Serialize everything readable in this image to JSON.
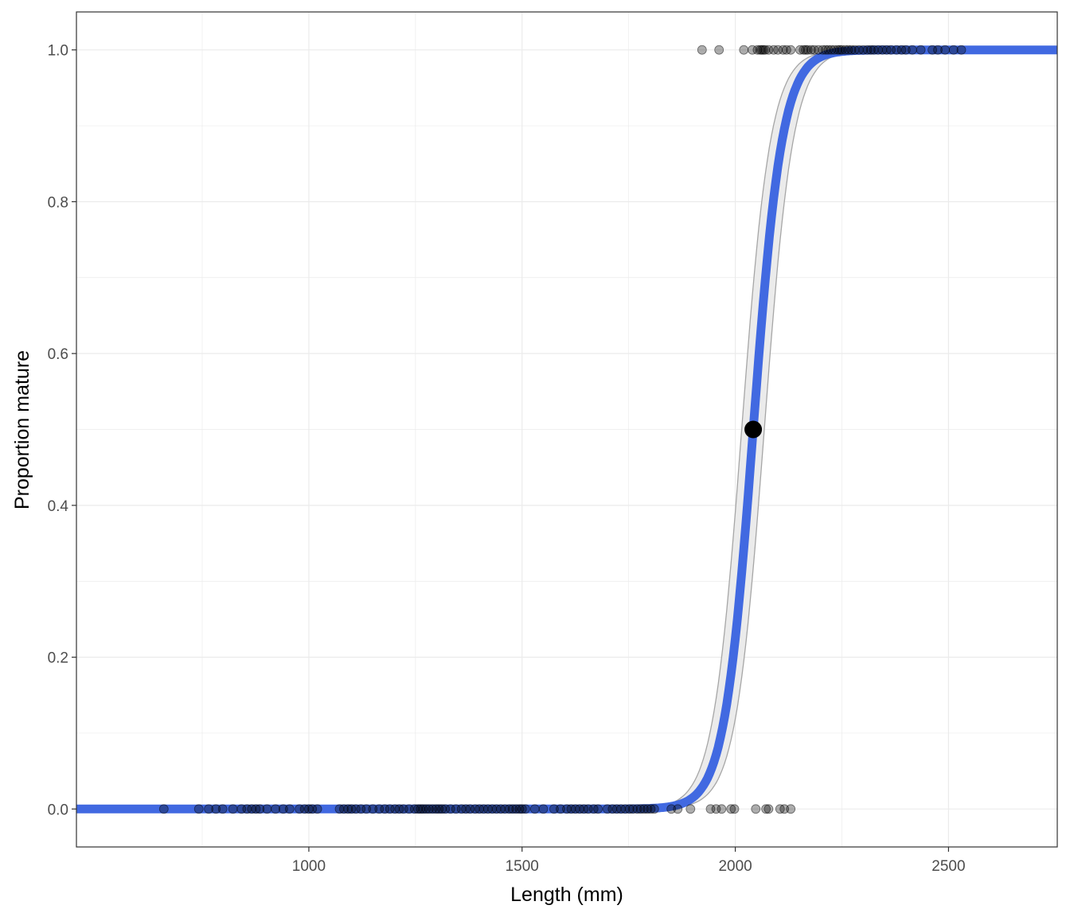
{
  "chart_data": {
    "type": "scatter",
    "xlabel": "Length (mm)",
    "ylabel": "Proportion mature",
    "xlim": [
      455,
      2755
    ],
    "ylim": [
      -0.05,
      1.05
    ],
    "x_ticks": [
      1000,
      1500,
      2000,
      2500
    ],
    "x_tick_labels": [
      "1000",
      "1500",
      "2000",
      "2500"
    ],
    "y_ticks": [
      0,
      0.2,
      0.4,
      0.6,
      0.8,
      1.0
    ],
    "y_tick_labels": [
      "0.0",
      "0.2",
      "0.4",
      "0.6",
      "0.8",
      "1.0"
    ],
    "grid": true,
    "theme": "bw",
    "colors": {
      "curve": "#4169E1",
      "ribbon_fill": "#EBEBEB",
      "ribbon_line": "#A6A6A6",
      "points": "#000000",
      "grid": "#EBEBEB",
      "panel_border": "#333333"
    },
    "fitted_curve": {
      "model": "logistic",
      "x_range": [
        455,
        2755
      ],
      "l50": 2042,
      "slope": 0.0295,
      "ci_l50": [
        2015,
        2068
      ]
    },
    "l50_point": {
      "x": 2042,
      "y": 0.5
    },
    "series": [
      {
        "values": [
          {
            "x": 1922,
            "y": 1
          },
          {
            "x": 1962,
            "y": 1
          },
          {
            "x": 2020,
            "y": 1
          },
          {
            "x": 2040,
            "y": 1
          },
          {
            "x": 2052,
            "y": 1
          },
          {
            "x": 2058,
            "y": 1
          },
          {
            "x": 2062,
            "y": 1
          },
          {
            "x": 2066,
            "y": 1
          },
          {
            "x": 2070,
            "y": 1
          },
          {
            "x": 2078,
            "y": 1
          },
          {
            "x": 2090,
            "y": 1
          },
          {
            "x": 2100,
            "y": 1
          },
          {
            "x": 2112,
            "y": 1
          },
          {
            "x": 2120,
            "y": 1
          },
          {
            "x": 2130,
            "y": 1
          },
          {
            "x": 2152,
            "y": 1
          },
          {
            "x": 2160,
            "y": 1
          },
          {
            "x": 2165,
            "y": 1
          },
          {
            "x": 2170,
            "y": 1
          },
          {
            "x": 2178,
            "y": 1
          },
          {
            "x": 2185,
            "y": 1
          },
          {
            "x": 2195,
            "y": 1
          },
          {
            "x": 2205,
            "y": 1
          },
          {
            "x": 2212,
            "y": 1
          },
          {
            "x": 2218,
            "y": 1
          },
          {
            "x": 2225,
            "y": 1
          },
          {
            "x": 2232,
            "y": 1
          },
          {
            "x": 2240,
            "y": 1
          },
          {
            "x": 2245,
            "y": 1
          },
          {
            "x": 2250,
            "y": 1
          },
          {
            "x": 2258,
            "y": 1
          },
          {
            "x": 2265,
            "y": 1
          },
          {
            "x": 2272,
            "y": 1
          },
          {
            "x": 2280,
            "y": 1
          },
          {
            "x": 2290,
            "y": 1
          },
          {
            "x": 2300,
            "y": 1
          },
          {
            "x": 2310,
            "y": 1
          },
          {
            "x": 2318,
            "y": 1
          },
          {
            "x": 2325,
            "y": 1
          },
          {
            "x": 2335,
            "y": 1
          },
          {
            "x": 2345,
            "y": 1
          },
          {
            "x": 2355,
            "y": 1
          },
          {
            "x": 2365,
            "y": 1
          },
          {
            "x": 2378,
            "y": 1
          },
          {
            "x": 2390,
            "y": 1
          },
          {
            "x": 2400,
            "y": 1
          },
          {
            "x": 2415,
            "y": 1
          },
          {
            "x": 2435,
            "y": 1
          },
          {
            "x": 2462,
            "y": 1
          },
          {
            "x": 2475,
            "y": 1
          },
          {
            "x": 2492,
            "y": 1
          },
          {
            "x": 2512,
            "y": 1
          },
          {
            "x": 2530,
            "y": 1
          },
          {
            "x": 660,
            "y": 0
          },
          {
            "x": 742,
            "y": 0
          },
          {
            "x": 765,
            "y": 0
          },
          {
            "x": 782,
            "y": 0
          },
          {
            "x": 798,
            "y": 0
          },
          {
            "x": 822,
            "y": 0
          },
          {
            "x": 842,
            "y": 0
          },
          {
            "x": 855,
            "y": 0
          },
          {
            "x": 866,
            "y": 0
          },
          {
            "x": 876,
            "y": 0
          },
          {
            "x": 885,
            "y": 0
          },
          {
            "x": 902,
            "y": 0
          },
          {
            "x": 922,
            "y": 0
          },
          {
            "x": 940,
            "y": 0
          },
          {
            "x": 955,
            "y": 0
          },
          {
            "x": 978,
            "y": 0
          },
          {
            "x": 990,
            "y": 0
          },
          {
            "x": 1000,
            "y": 0
          },
          {
            "x": 1008,
            "y": 0
          },
          {
            "x": 1020,
            "y": 0
          },
          {
            "x": 1072,
            "y": 0
          },
          {
            "x": 1082,
            "y": 0
          },
          {
            "x": 1092,
            "y": 0
          },
          {
            "x": 1100,
            "y": 0
          },
          {
            "x": 1110,
            "y": 0
          },
          {
            "x": 1122,
            "y": 0
          },
          {
            "x": 1135,
            "y": 0
          },
          {
            "x": 1150,
            "y": 0
          },
          {
            "x": 1165,
            "y": 0
          },
          {
            "x": 1178,
            "y": 0
          },
          {
            "x": 1190,
            "y": 0
          },
          {
            "x": 1202,
            "y": 0
          },
          {
            "x": 1212,
            "y": 0
          },
          {
            "x": 1222,
            "y": 0
          },
          {
            "x": 1235,
            "y": 0
          },
          {
            "x": 1248,
            "y": 0
          },
          {
            "x": 1256,
            "y": 0
          },
          {
            "x": 1262,
            "y": 0
          },
          {
            "x": 1268,
            "y": 0
          },
          {
            "x": 1275,
            "y": 0
          },
          {
            "x": 1282,
            "y": 0
          },
          {
            "x": 1290,
            "y": 0
          },
          {
            "x": 1298,
            "y": 0
          },
          {
            "x": 1305,
            "y": 0
          },
          {
            "x": 1312,
            "y": 0
          },
          {
            "x": 1320,
            "y": 0
          },
          {
            "x": 1332,
            "y": 0
          },
          {
            "x": 1345,
            "y": 0
          },
          {
            "x": 1358,
            "y": 0
          },
          {
            "x": 1368,
            "y": 0
          },
          {
            "x": 1378,
            "y": 0
          },
          {
            "x": 1390,
            "y": 0
          },
          {
            "x": 1400,
            "y": 0
          },
          {
            "x": 1410,
            "y": 0
          },
          {
            "x": 1420,
            "y": 0
          },
          {
            "x": 1430,
            "y": 0
          },
          {
            "x": 1440,
            "y": 0
          },
          {
            "x": 1450,
            "y": 0
          },
          {
            "x": 1460,
            "y": 0
          },
          {
            "x": 1470,
            "y": 0
          },
          {
            "x": 1478,
            "y": 0
          },
          {
            "x": 1486,
            "y": 0
          },
          {
            "x": 1494,
            "y": 0
          },
          {
            "x": 1500,
            "y": 0
          },
          {
            "x": 1508,
            "y": 0
          },
          {
            "x": 1530,
            "y": 0
          },
          {
            "x": 1550,
            "y": 0
          },
          {
            "x": 1575,
            "y": 0
          },
          {
            "x": 1590,
            "y": 0
          },
          {
            "x": 1605,
            "y": 0
          },
          {
            "x": 1615,
            "y": 0
          },
          {
            "x": 1625,
            "y": 0
          },
          {
            "x": 1635,
            "y": 0
          },
          {
            "x": 1645,
            "y": 0
          },
          {
            "x": 1655,
            "y": 0
          },
          {
            "x": 1668,
            "y": 0
          },
          {
            "x": 1678,
            "y": 0
          },
          {
            "x": 1700,
            "y": 0
          },
          {
            "x": 1712,
            "y": 0
          },
          {
            "x": 1722,
            "y": 0
          },
          {
            "x": 1732,
            "y": 0
          },
          {
            "x": 1742,
            "y": 0
          },
          {
            "x": 1752,
            "y": 0
          },
          {
            "x": 1760,
            "y": 0
          },
          {
            "x": 1770,
            "y": 0
          },
          {
            "x": 1778,
            "y": 0
          },
          {
            "x": 1786,
            "y": 0
          },
          {
            "x": 1794,
            "y": 0
          },
          {
            "x": 1802,
            "y": 0
          },
          {
            "x": 1810,
            "y": 0
          },
          {
            "x": 1850,
            "y": 0
          },
          {
            "x": 1865,
            "y": 0
          },
          {
            "x": 1895,
            "y": 0
          },
          {
            "x": 1942,
            "y": 0
          },
          {
            "x": 1955,
            "y": 0
          },
          {
            "x": 1968,
            "y": 0
          },
          {
            "x": 1990,
            "y": 0
          },
          {
            "x": 1998,
            "y": 0
          },
          {
            "x": 2048,
            "y": 0
          },
          {
            "x": 2072,
            "y": 0
          },
          {
            "x": 2078,
            "y": 0
          },
          {
            "x": 2105,
            "y": 0
          },
          {
            "x": 2115,
            "y": 0
          },
          {
            "x": 2130,
            "y": 0
          }
        ]
      }
    ]
  }
}
